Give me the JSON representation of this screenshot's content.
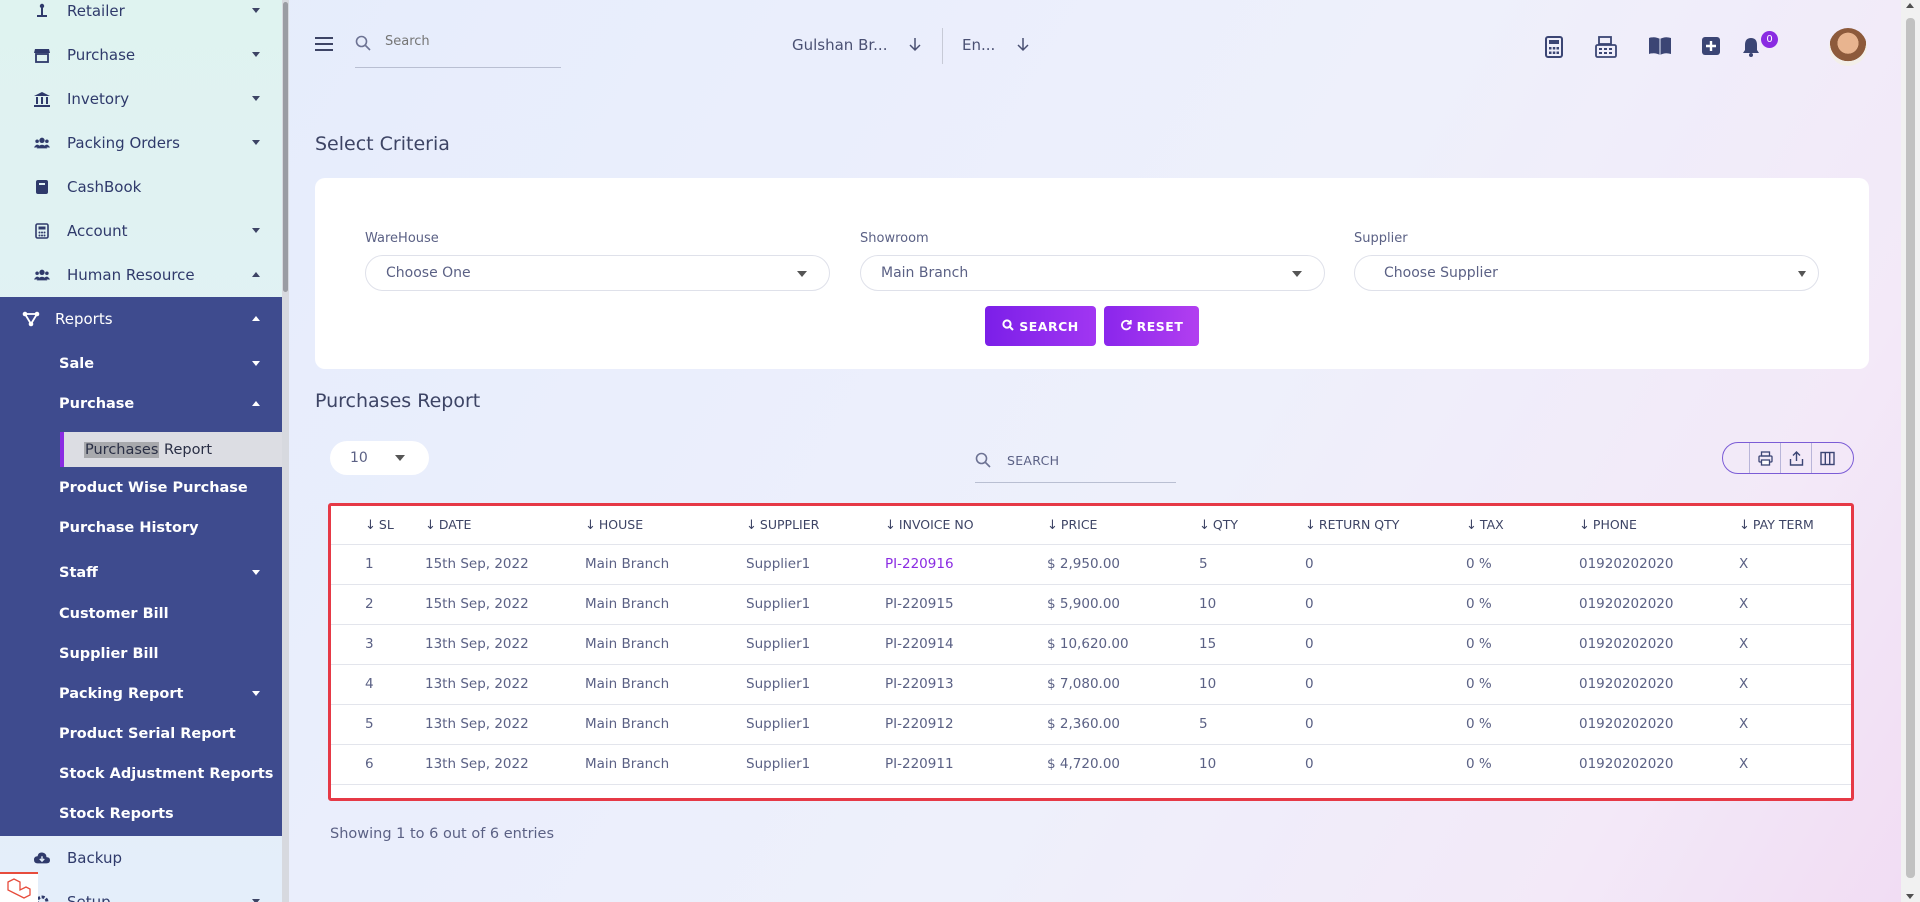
{
  "sidebar": {
    "items": [
      {
        "label": "Retailer",
        "icon": "retailer-icon"
      },
      {
        "label": "Purchase",
        "icon": "store-icon"
      },
      {
        "label": "Invetory",
        "icon": "bank-icon"
      },
      {
        "label": "Packing Orders",
        "icon": "users-icon"
      },
      {
        "label": "CashBook",
        "icon": "book-icon"
      },
      {
        "label": "Account",
        "icon": "calculator-icon"
      },
      {
        "label": "Human Resource",
        "icon": "users-icon"
      }
    ],
    "reports": {
      "label": "Reports",
      "sub": [
        {
          "label": "Sale"
        },
        {
          "label": "Purchase"
        }
      ],
      "active_part1": "Purchases",
      "active_part2": "Report",
      "sub2": [
        {
          "label": "Product Wise Purchase"
        },
        {
          "label": "Purchase History"
        },
        {
          "label": "Staff"
        },
        {
          "label": "Customer Bill"
        },
        {
          "label": "Supplier Bill"
        },
        {
          "label": "Packing Report"
        },
        {
          "label": "Product Serial Report"
        },
        {
          "label": "Stock Adjustment Reports"
        },
        {
          "label": "Stock Reports"
        }
      ]
    },
    "backup": "Backup",
    "setup": "Setup"
  },
  "header": {
    "search_placeholder": "Search",
    "branch": "Gulshan Br...",
    "language": "En...",
    "notification_count": "0"
  },
  "criteria": {
    "title": "Select Criteria",
    "warehouse_label": "WareHouse",
    "warehouse_value": "Choose One",
    "showroom_label": "Showroom",
    "showroom_value": "Main Branch",
    "supplier_label": "Supplier",
    "supplier_value": "Choose Supplier",
    "search_button": "SEARCH",
    "reset_button": "RESET"
  },
  "report": {
    "title": "Purchases Report",
    "page_length": "10",
    "search_label": "SEARCH",
    "columns": [
      "SL",
      "DATE",
      "HOUSE",
      "SUPPLIER",
      "INVOICE NO",
      "PRICE",
      "QTY",
      "RETURN QTY",
      "TAX",
      "PHONE",
      "PAY TERM"
    ],
    "rows": [
      [
        "1",
        "15th Sep, 2022",
        "Main Branch",
        "Supplier1",
        "PI-220916",
        "$ 2,950.00",
        "5",
        "0",
        "0 %",
        "01920202020",
        "X"
      ],
      [
        "2",
        "15th Sep, 2022",
        "Main Branch",
        "Supplier1",
        "PI-220915",
        "$ 5,900.00",
        "10",
        "0",
        "0 %",
        "01920202020",
        "X"
      ],
      [
        "3",
        "13th Sep, 2022",
        "Main Branch",
        "Supplier1",
        "PI-220914",
        "$ 10,620.00",
        "15",
        "0",
        "0 %",
        "01920202020",
        "X"
      ],
      [
        "4",
        "13th Sep, 2022",
        "Main Branch",
        "Supplier1",
        "PI-220913",
        "$ 7,080.00",
        "10",
        "0",
        "0 %",
        "01920202020",
        "X"
      ],
      [
        "5",
        "13th Sep, 2022",
        "Main Branch",
        "Supplier1",
        "PI-220912",
        "$ 2,360.00",
        "5",
        "0",
        "0 %",
        "01920202020",
        "X"
      ],
      [
        "6",
        "13th Sep, 2022",
        "Main Branch",
        "Supplier1",
        "PI-220911",
        "$ 4,720.00",
        "10",
        "0",
        "0 %",
        "01920202020",
        "X"
      ]
    ],
    "showing": "Showing 1 to 6 out of 6 entries"
  },
  "colors": {
    "accent": "#8a2be2",
    "sidebar_active_block": "#3e4b8e",
    "highlight_border": "#e63946"
  }
}
